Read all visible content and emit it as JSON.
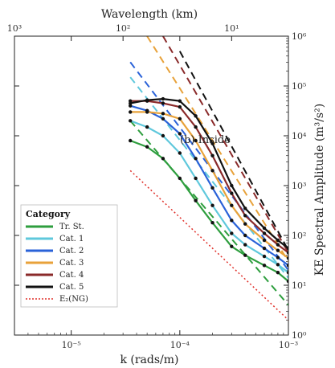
{
  "chart_data": {
    "type": "line",
    "annotation": "(b) Inside",
    "xlabel": "k (rads/m)",
    "xlabel_top": "Wavelength (km)",
    "ylabel": "KE Spectral Amplitude (m³/s²)",
    "x_scale": "log",
    "y_scale": "log",
    "xlim": [
      3e-06,
      0.001
    ],
    "ylim": [
      1,
      1000000
    ],
    "x_ticks": [
      {
        "value": 1e-05,
        "label": "10⁻⁵"
      },
      {
        "value": 0.0001,
        "label": "10⁻⁴"
      },
      {
        "value": 0.001,
        "label": "10⁻³"
      }
    ],
    "x_top_ticks": [
      {
        "value": 3e-06,
        "label": "10³"
      },
      {
        "value": 3e-05,
        "label": "10²"
      },
      {
        "value": 0.0003,
        "label": "10¹"
      }
    ],
    "y_ticks": [
      {
        "value": 1,
        "label": "10⁰"
      },
      {
        "value": 10,
        "label": "10¹"
      },
      {
        "value": 100,
        "label": "10²"
      },
      {
        "value": 1000,
        "label": "10³"
      },
      {
        "value": 10000,
        "label": "10⁴"
      },
      {
        "value": 100000,
        "label": "10⁵"
      },
      {
        "value": 1000000,
        "label": "10⁶"
      }
    ],
    "legend": {
      "title": "Category",
      "position": "bottom-left"
    },
    "series": [
      {
        "name": "Tr. St.",
        "color": "#2e9e3e",
        "x": [
          3.5e-05,
          5e-05,
          7e-05,
          0.0001,
          0.00014,
          0.0002,
          0.0003,
          0.0004,
          0.0006,
          0.0008,
          0.001
        ],
        "y": [
          8000,
          6000,
          3500,
          1400,
          500,
          180,
          60,
          40,
          25,
          18,
          12
        ],
        "fit": {
          "x": [
            3.5e-05,
            0.001
          ],
          "y": [
            20000,
            4
          ]
        }
      },
      {
        "name": "Cat. 1",
        "color": "#5fc8dc",
        "x": [
          3.5e-05,
          5e-05,
          7e-05,
          0.0001,
          0.00014,
          0.0002,
          0.0003,
          0.0004,
          0.0006,
          0.0008,
          0.001
        ],
        "y": [
          20000,
          15000,
          10000,
          4500,
          1400,
          400,
          110,
          65,
          38,
          26,
          18
        ],
        "fit": {
          "x": [
            3.5e-05,
            0.001
          ],
          "y": [
            150000,
            14
          ]
        }
      },
      {
        "name": "Cat. 2",
        "color": "#2a62d8",
        "x": [
          3.5e-05,
          5e-05,
          7e-05,
          0.0001,
          0.00014,
          0.0002,
          0.0003,
          0.0004,
          0.0006,
          0.0008,
          0.001
        ],
        "y": [
          40000,
          32000,
          22000,
          11000,
          3500,
          900,
          200,
          100,
          55,
          36,
          25
        ],
        "fit": {
          "x": [
            3.5e-05,
            0.001
          ],
          "y": [
            300000,
            20
          ]
        }
      },
      {
        "name": "Cat. 3",
        "color": "#e8a23a",
        "x": [
          3.5e-05,
          5e-05,
          7e-05,
          0.0001,
          0.00014,
          0.0002,
          0.0003,
          0.0004,
          0.0006,
          0.0008,
          0.001
        ],
        "y": [
          30000,
          30000,
          28000,
          22000,
          8000,
          2000,
          400,
          170,
          80,
          50,
          35
        ],
        "fit": {
          "x": [
            5e-05,
            0.001
          ],
          "y": [
            1000000,
            30
          ]
        }
      },
      {
        "name": "Cat. 4",
        "color": "#8a2a2a",
        "x": [
          3.5e-05,
          5e-05,
          7e-05,
          0.0001,
          0.00014,
          0.0002,
          0.0003,
          0.0004,
          0.0006,
          0.0008,
          0.001
        ],
        "y": [
          50000,
          50000,
          45000,
          38000,
          15000,
          4000,
          700,
          250,
          110,
          65,
          45
        ],
        "fit": {
          "x": [
            7e-05,
            0.001
          ],
          "y": [
            1000000,
            45
          ]
        }
      },
      {
        "name": "Cat. 5",
        "color": "#111111",
        "x": [
          3.5e-05,
          5e-05,
          7e-05,
          0.0001,
          0.00014,
          0.0002,
          0.0003,
          0.0004,
          0.0006,
          0.0008,
          0.001
        ],
        "y": [
          45000,
          52000,
          55000,
          50000,
          25000,
          7000,
          1000,
          350,
          140,
          80,
          55
        ],
        "fit": {
          "x": [
            0.0001,
            0.001
          ],
          "y": [
            500000,
            50
          ]
        }
      },
      {
        "name": "E₂(NG)",
        "color": "#e0302a",
        "style": "dotted",
        "x": [
          3.5e-05,
          0.001
        ],
        "y": [
          2000,
          2
        ]
      }
    ]
  }
}
